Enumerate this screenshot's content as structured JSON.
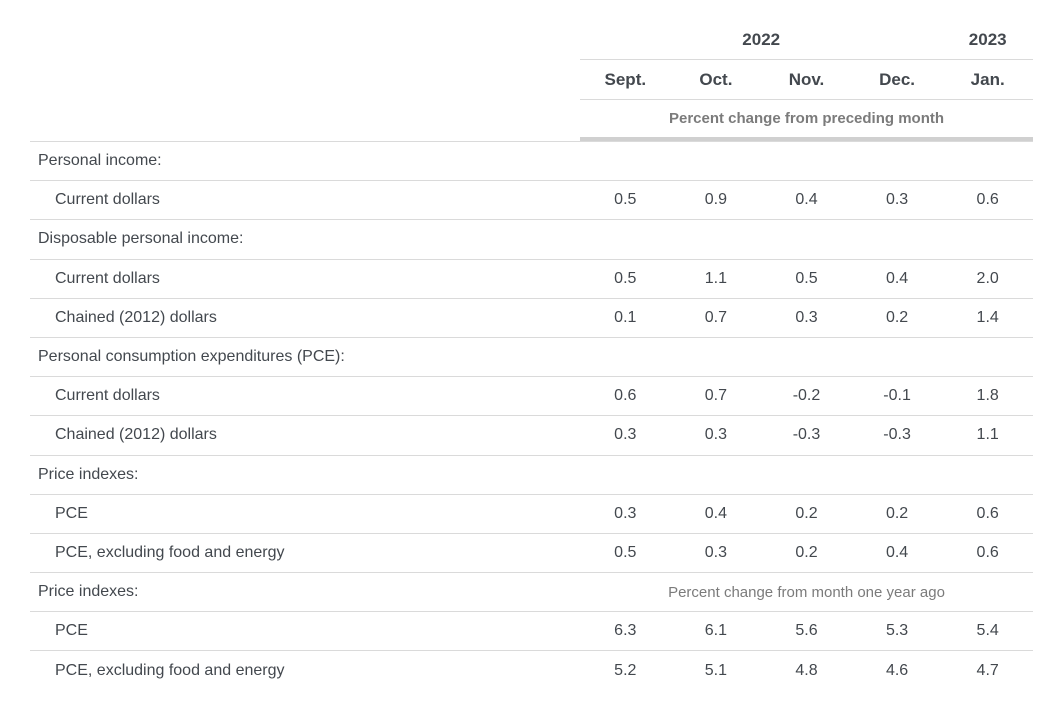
{
  "colors": {
    "text": "#43484e",
    "muted_text": "#7b7b7b",
    "separator_line": "#dadada",
    "thick_rule": "#d0d0d0",
    "background": "#ffffff"
  },
  "table": {
    "year_groups": [
      {
        "label": "2022",
        "cols": 4
      },
      {
        "label": "2023",
        "cols": 1
      }
    ],
    "months": [
      "Sept.",
      "Oct.",
      "Nov.",
      "Dec.",
      "Jan."
    ],
    "unit_note": "Percent change from preceding month",
    "rows": [
      {
        "type": "section",
        "label": "Personal income:"
      },
      {
        "type": "data",
        "label": "Current dollars",
        "values": [
          "0.5",
          "0.9",
          "0.4",
          "0.3",
          "0.6"
        ]
      },
      {
        "type": "section",
        "label": "Disposable personal income:"
      },
      {
        "type": "data",
        "label": "Current dollars",
        "values": [
          "0.5",
          "1.1",
          "0.5",
          "0.4",
          "2.0"
        ]
      },
      {
        "type": "data",
        "label": "Chained (2012) dollars",
        "values": [
          "0.1",
          "0.7",
          "0.3",
          "0.2",
          "1.4"
        ]
      },
      {
        "type": "section",
        "label": "Personal consumption expenditures (PCE):"
      },
      {
        "type": "data",
        "label": "Current dollars",
        "values": [
          "0.6",
          "0.7",
          "-0.2",
          "-0.1",
          "1.8"
        ]
      },
      {
        "type": "data",
        "label": "Chained (2012) dollars",
        "values": [
          "0.3",
          "0.3",
          "-0.3",
          "-0.3",
          "1.1"
        ]
      },
      {
        "type": "section",
        "label": "Price indexes:"
      },
      {
        "type": "data",
        "label": "PCE",
        "values": [
          "0.3",
          "0.4",
          "0.2",
          "0.2",
          "0.6"
        ]
      },
      {
        "type": "data",
        "label": "PCE, excluding food and energy",
        "values": [
          "0.5",
          "0.3",
          "0.2",
          "0.4",
          "0.6"
        ]
      },
      {
        "type": "section",
        "label": "Price indexes:",
        "note": "Percent change from month one year ago"
      },
      {
        "type": "data",
        "label": "PCE",
        "values": [
          "6.3",
          "6.1",
          "5.6",
          "5.3",
          "5.4"
        ]
      },
      {
        "type": "data",
        "label": "PCE, excluding food and energy",
        "values": [
          "5.2",
          "5.1",
          "4.8",
          "4.6",
          "4.7"
        ]
      }
    ]
  },
  "chart_data": {
    "type": "table",
    "title": "",
    "columns": [
      "Sept. 2022",
      "Oct. 2022",
      "Nov. 2022",
      "Dec. 2022",
      "Jan. 2023"
    ],
    "column_groups": [
      {
        "label": "2022",
        "columns": [
          "Sept.",
          "Oct.",
          "Nov.",
          "Dec."
        ]
      },
      {
        "label": "2023",
        "columns": [
          "Jan."
        ]
      }
    ],
    "units": {
      "primary": "Percent change from preceding month",
      "secondary": "Percent change from month one year ago"
    },
    "rows": [
      {
        "section": "Personal income",
        "measure": "Current dollars",
        "unit": "Percent change from preceding month",
        "values": [
          0.5,
          0.9,
          0.4,
          0.3,
          0.6
        ]
      },
      {
        "section": "Disposable personal income",
        "measure": "Current dollars",
        "unit": "Percent change from preceding month",
        "values": [
          0.5,
          1.1,
          0.5,
          0.4,
          2.0
        ]
      },
      {
        "section": "Disposable personal income",
        "measure": "Chained (2012) dollars",
        "unit": "Percent change from preceding month",
        "values": [
          0.1,
          0.7,
          0.3,
          0.2,
          1.4
        ]
      },
      {
        "section": "Personal consumption expenditures (PCE)",
        "measure": "Current dollars",
        "unit": "Percent change from preceding month",
        "values": [
          0.6,
          0.7,
          -0.2,
          -0.1,
          1.8
        ]
      },
      {
        "section": "Personal consumption expenditures (PCE)",
        "measure": "Chained (2012) dollars",
        "unit": "Percent change from preceding month",
        "values": [
          0.3,
          0.3,
          -0.3,
          -0.3,
          1.1
        ]
      },
      {
        "section": "Price indexes",
        "measure": "PCE",
        "unit": "Percent change from preceding month",
        "values": [
          0.3,
          0.4,
          0.2,
          0.2,
          0.6
        ]
      },
      {
        "section": "Price indexes",
        "measure": "PCE, excluding food and energy",
        "unit": "Percent change from preceding month",
        "values": [
          0.5,
          0.3,
          0.2,
          0.4,
          0.6
        ]
      },
      {
        "section": "Price indexes",
        "measure": "PCE",
        "unit": "Percent change from month one year ago",
        "values": [
          6.3,
          6.1,
          5.6,
          5.3,
          5.4
        ]
      },
      {
        "section": "Price indexes",
        "measure": "PCE, excluding food and energy",
        "unit": "Percent change from month one year ago",
        "values": [
          5.2,
          5.1,
          4.8,
          4.6,
          4.7
        ]
      }
    ]
  }
}
